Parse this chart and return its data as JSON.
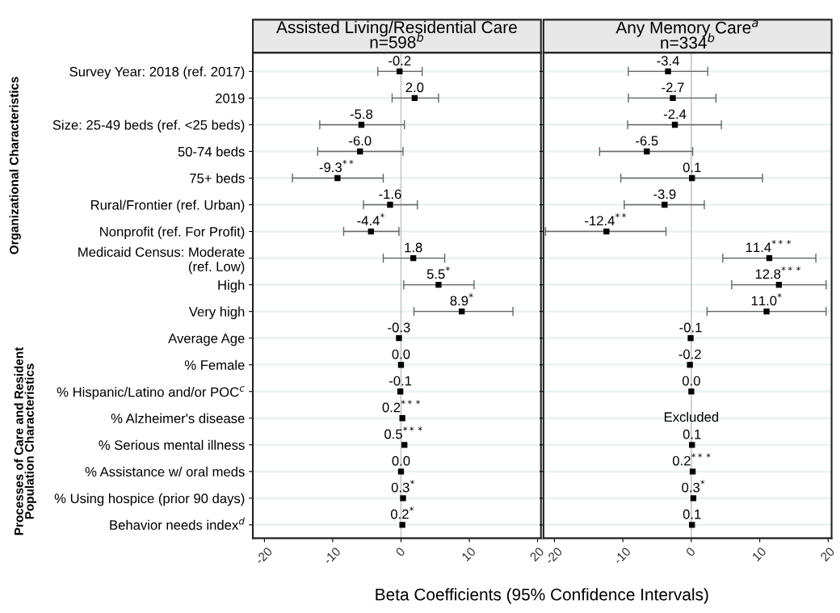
{
  "chart_data": [
    {
      "type": "scatter",
      "orientation": "horizontal",
      "title": "Assisted Living/Residential Care\nn=598$^{b}$",
      "xlabel": "Beta Coefficients (95% Confidence Intervals)",
      "categories": [
        "Survey Year: 2018 (ref. 2017)",
        "2019",
        "Size: 25-49 beds (ref. <25 beds)",
        "50-74 beds",
        "75+ beds",
        "Rural/Frontier (ref. Urban)",
        "Nonprofit (ref. For Profit)",
        "Medicaid Census: Moderate\n(ref. Low)",
        "High",
        "Very high",
        "Average Age",
        "% Female",
        "% Hispanic/Latino and/or POC$^{c}$",
        "% Alzheimer's disease",
        "% Serious mental illness",
        "% Assistance w/ oral meds",
        "% Using hospice (prior 90 days)",
        "Behavior needs index$^{d}$"
      ],
      "values": [
        -0.2,
        2.0,
        -5.8,
        -6.0,
        -9.3,
        -1.6,
        -4.4,
        1.8,
        5.5,
        8.9,
        -0.3,
        0.0,
        -0.1,
        0.2,
        0.5,
        0.0,
        0.3,
        0.2
      ],
      "errors": [
        [
          -3.4,
          3.1
        ],
        [
          -1.3,
          5.5
        ],
        [
          -11.9,
          0.5
        ],
        [
          -12.2,
          0.3
        ],
        [
          -15.9,
          -2.6
        ],
        [
          -5.5,
          2.4
        ],
        [
          -8.4,
          -0.3
        ],
        [
          -2.6,
          6.4
        ],
        [
          0.4,
          10.7
        ],
        [
          1.9,
          16.4
        ],
        null,
        null,
        null,
        null,
        null,
        null,
        null,
        null
      ],
      "value_labels": [
        "-0.2",
        "2.0",
        "-5.8",
        "-6.0",
        "-9.3$^{**}$",
        "-1.6",
        "-4.4$^{*}$",
        "1.8",
        "5.5$^{*}$",
        "8.9$^{*}$",
        "-0.3",
        "0.0",
        "-0.1",
        "0.2$^{***}$",
        "0.5$^{***}$",
        "0.0",
        "0.3$^{*}$",
        "0.2$^{*}$"
      ],
      "color": "#000000",
      "marker": "square",
      "grid": "y",
      "xlim": [
        -21.7,
        20.5
      ],
      "xticks": [
        -20,
        -10,
        0,
        10,
        20
      ],
      "ref_lines": [
        {
          "axis": "x",
          "value": 0,
          "color": "#c8c8c8"
        }
      ],
      "annotations": [
        "Organizational Characteristics",
        "Processes of Care and Resident\nPopulation Characteristics"
      ]
    },
    {
      "type": "scatter",
      "orientation": "horizontal",
      "title": "Any Memory Care$^{a}$\nn=334$^{b}$",
      "categories": [
        null,
        null,
        null,
        null,
        null,
        null,
        null,
        null,
        null,
        null,
        null,
        null,
        null,
        null,
        null,
        null,
        null,
        null
      ],
      "values": [
        -3.4,
        -2.7,
        -2.4,
        -6.5,
        0.1,
        -3.9,
        -12.4,
        11.4,
        12.8,
        11.0,
        -0.1,
        -0.2,
        0.0,
        null,
        0.1,
        0.2,
        0.3,
        0.1
      ],
      "errors": [
        [
          -9.2,
          2.4
        ],
        [
          -9.2,
          3.6
        ],
        [
          -9.3,
          4.4
        ],
        [
          -13.4,
          0.2
        ],
        [
          -10.3,
          10.4
        ],
        [
          -9.8,
          1.9
        ],
        [
          -21.3,
          -3.7
        ],
        [
          4.6,
          18.2
        ],
        [
          5.9,
          19.7
        ],
        [
          2.3,
          19.7
        ],
        null,
        null,
        null,
        null,
        null,
        null,
        null,
        null
      ],
      "value_labels": [
        "-3.4",
        "-2.7",
        "-2.4",
        "-6.5",
        "0.1",
        "-3.9",
        "-12.4$^{**}$",
        "11.4$^{***}$",
        "12.8$^{***}$",
        "11.0$^{*}$",
        "-0.1",
        "-0.2",
        "0.0",
        "Excluded",
        "0.1",
        "0.2$^{***}$",
        "0.3$^{*}$",
        "0.1"
      ],
      "color": "#000000",
      "marker": "square",
      "grid": "y",
      "xlim": [
        -21.6,
        20.5
      ],
      "xticks": [
        -20,
        -10,
        0,
        10,
        20
      ],
      "ref_lines": [
        {
          "axis": "x",
          "value": 0,
          "color": "#c8c8c8"
        }
      ]
    }
  ]
}
